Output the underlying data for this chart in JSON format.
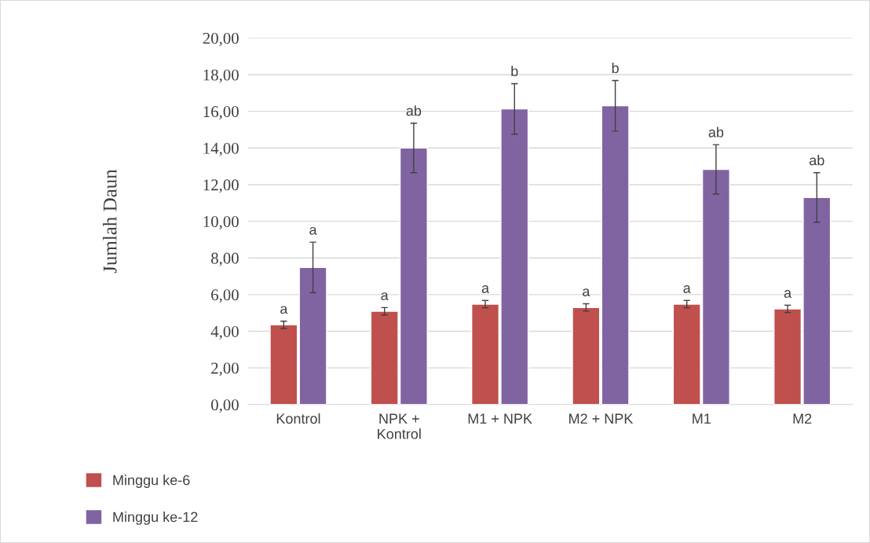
{
  "chart_data": {
    "type": "bar",
    "ylabel": "Jumlah Daun",
    "categories": [
      "Kontrol",
      "NPK +\nKontrol",
      "M1 + NPK",
      "M2 + NPK",
      "M1",
      "M2"
    ],
    "series": [
      {
        "name": "Minggu ke-6",
        "color": "#c0504d",
        "values": [
          4.35,
          5.09,
          5.48,
          5.3,
          5.48,
          5.22
        ],
        "errors": [
          0.2,
          0.2,
          0.2,
          0.2,
          0.2,
          0.2
        ],
        "value_labels": [
          "a",
          "a",
          "a",
          "a",
          "a",
          "a"
        ]
      },
      {
        "name": "Minggu ke-12",
        "color": "#8064a2",
        "values": [
          7.48,
          14.0,
          16.13,
          16.3,
          12.83,
          11.3
        ],
        "errors": [
          1.38,
          1.35,
          1.38,
          1.38,
          1.35,
          1.35
        ],
        "value_labels": [
          "a",
          "ab",
          "b",
          "b",
          "ab",
          "ab"
        ]
      }
    ],
    "ylim": [
      0,
      20
    ],
    "yticks": [
      {
        "value": 0,
        "label": "0,00"
      },
      {
        "value": 2,
        "label": "2,00"
      },
      {
        "value": 4,
        "label": "4,00"
      },
      {
        "value": 6,
        "label": "6,00"
      },
      {
        "value": 8,
        "label": "8,00"
      },
      {
        "value": 10,
        "label": "10,00"
      },
      {
        "value": 12,
        "label": "12,00"
      },
      {
        "value": 14,
        "label": "14,00"
      },
      {
        "value": 16,
        "label": "16,00"
      },
      {
        "value": 18,
        "label": "18,00"
      },
      {
        "value": 20,
        "label": "20,00"
      }
    ],
    "grid": "y",
    "legend": "bottom left"
  }
}
